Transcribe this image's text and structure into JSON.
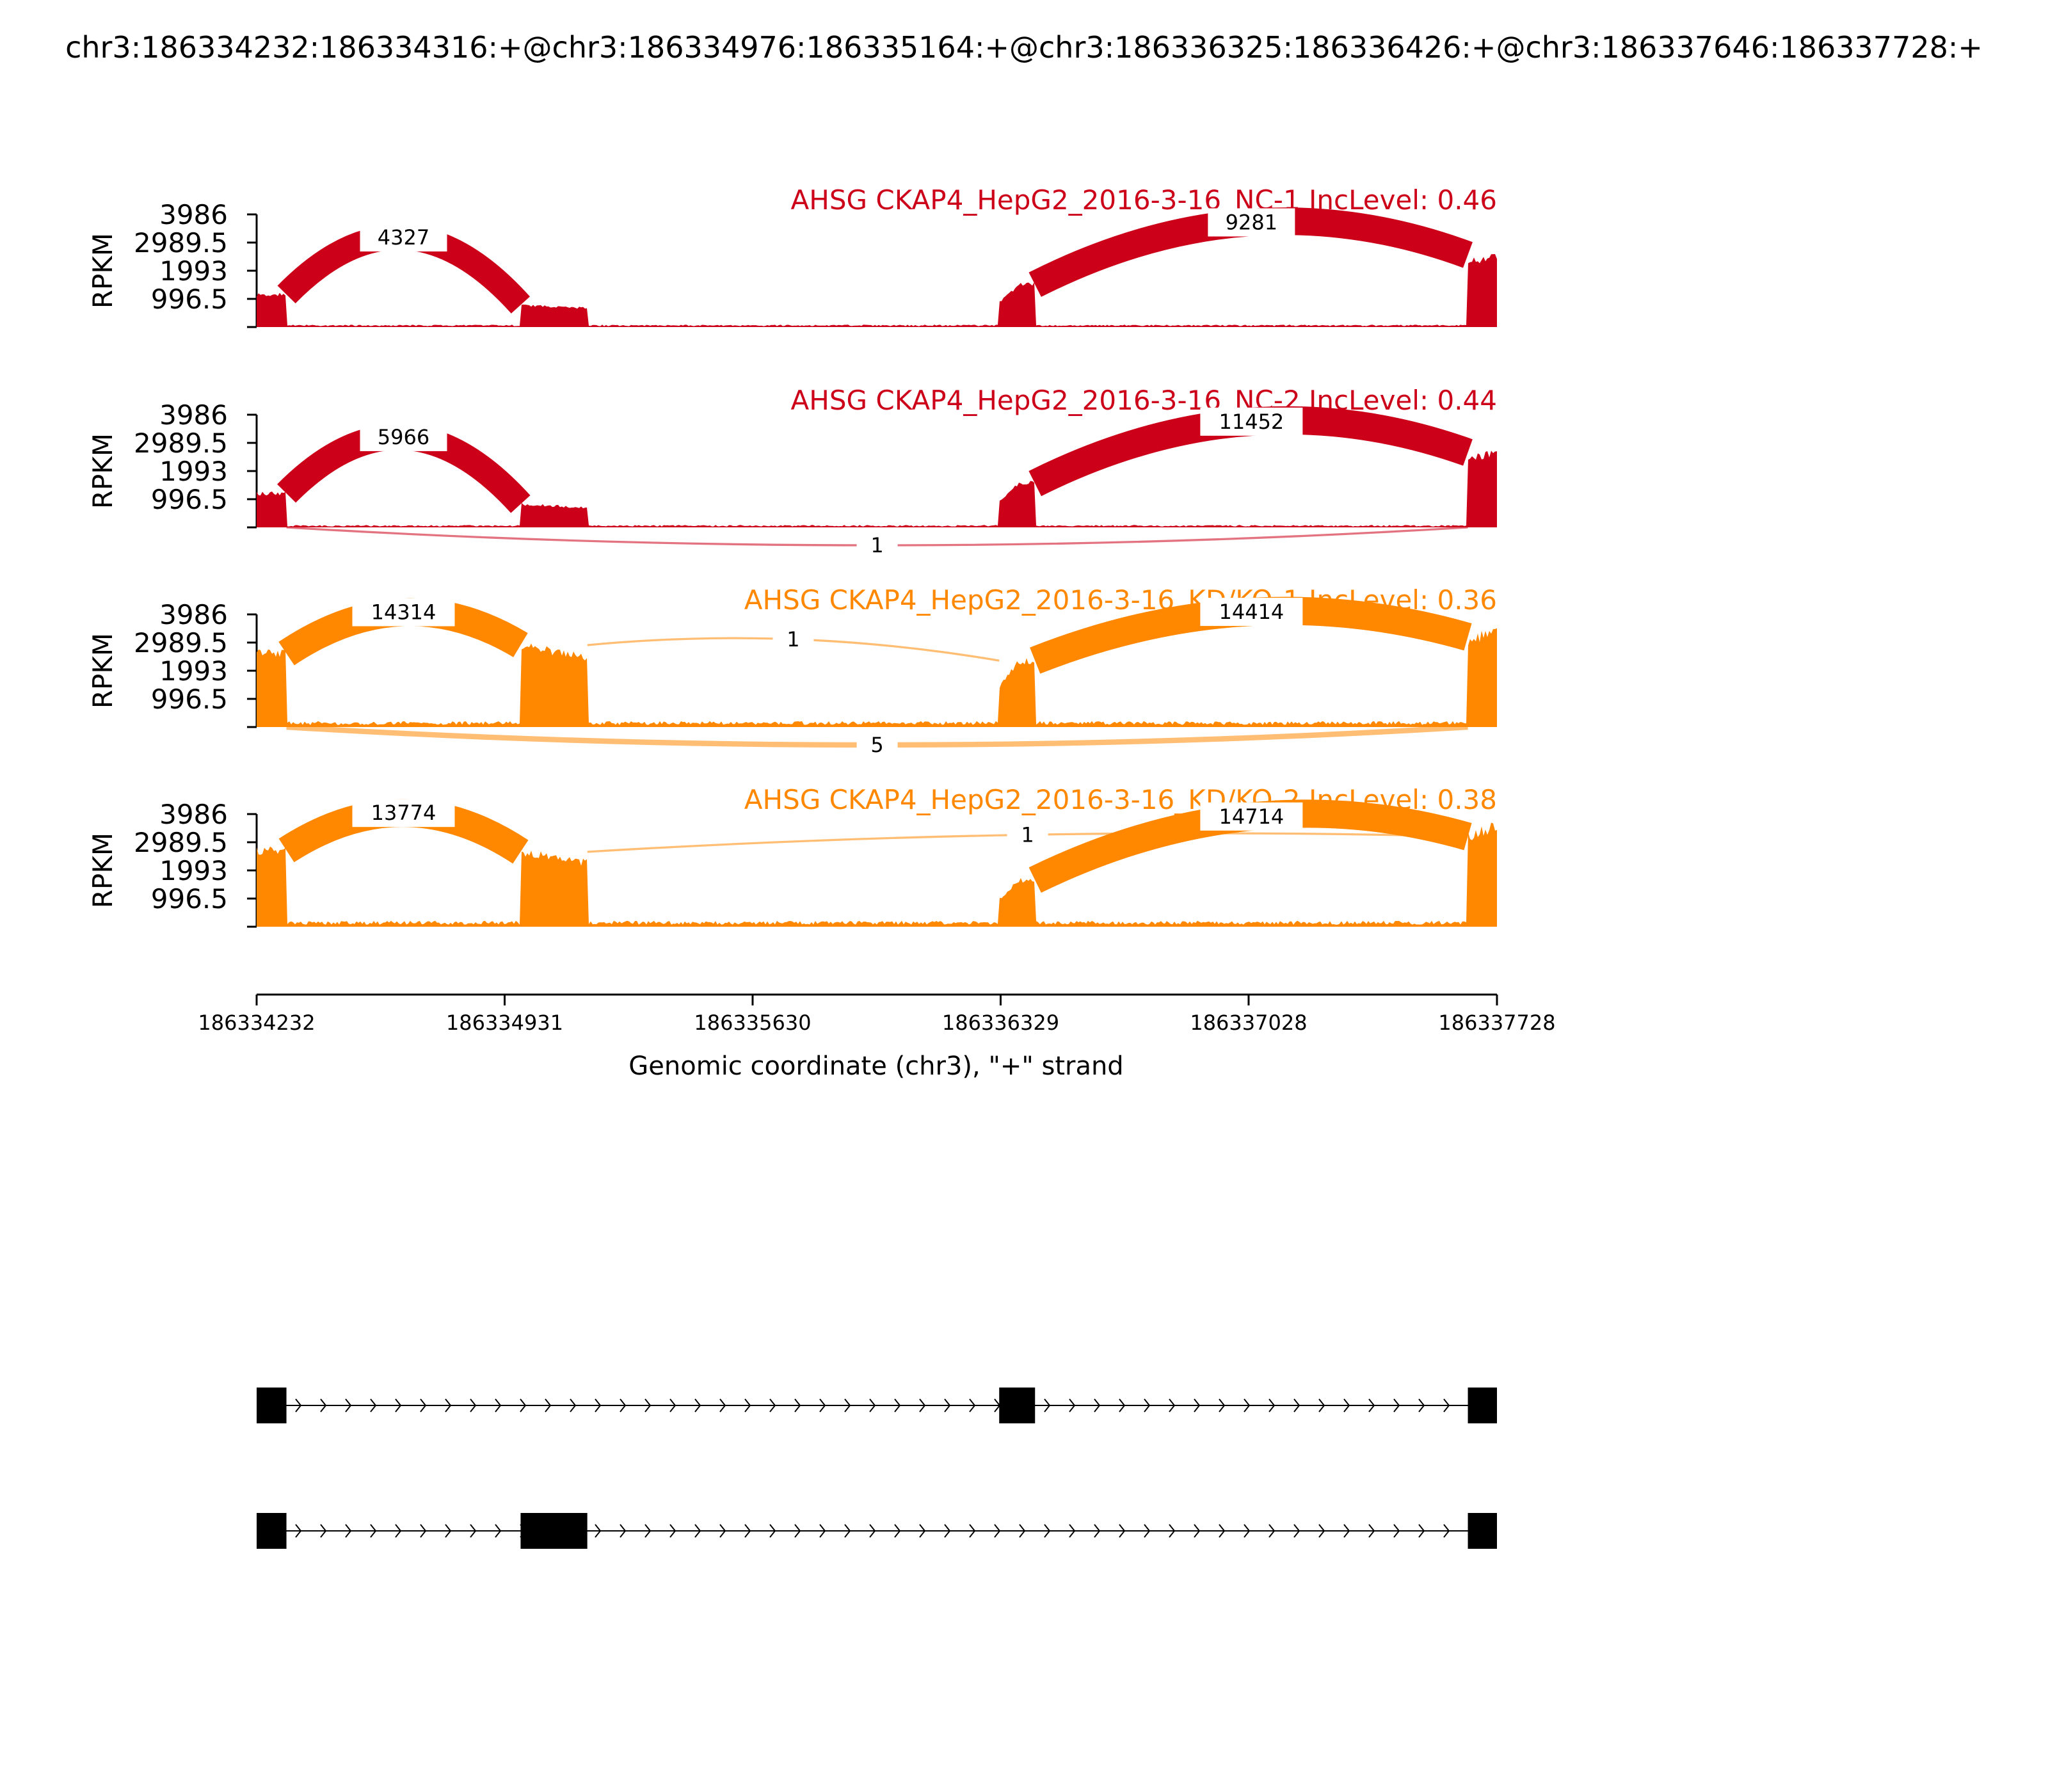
{
  "figure_title": "chr3:186334232:186334316:+@chr3:186334976:186335164:+@chr3:186336325:186336426:+@chr3:186337646:186337728:+",
  "chart_data": {
    "type": "sashimi",
    "xlabel": "Genomic coordinate (chr3), \"+\" strand",
    "ylabel": "RPKM",
    "xlim": [
      186334232,
      186337728
    ],
    "xticks": [
      "186334232",
      "186334931",
      "186335630",
      "186336329",
      "186337028",
      "186337728"
    ],
    "ylim": [
      0,
      3986
    ],
    "yticks": [
      "996.5",
      "1993",
      "2989.5",
      "3986"
    ],
    "colors": {
      "NC": "#cc0018",
      "KD": "#ff8800"
    },
    "exons": [
      {
        "start": 186334232,
        "end": 186334316
      },
      {
        "start": 186334976,
        "end": 186335164
      },
      {
        "start": 186336325,
        "end": 186336426
      },
      {
        "start": 186337646,
        "end": 186337728
      }
    ],
    "tracks": [
      {
        "label": "AHSG CKAP4_HepG2_2016-3-16_NC-1 IncLevel: 0.46",
        "color": "#cc0018",
        "coverage": {
          "exon1": 1150,
          "exon2": 780,
          "exon3": 1500,
          "exon4": 2550,
          "intron": 60
        },
        "junctions": [
          {
            "from": 186334316,
            "to": 186334976,
            "reads": "4327",
            "above": true
          },
          {
            "from": 186336426,
            "to": 186337646,
            "reads": "9281",
            "above": true
          }
        ]
      },
      {
        "label": "AHSG CKAP4_HepG2_2016-3-16_NC-2 IncLevel: 0.44",
        "color": "#cc0018",
        "coverage": {
          "exon1": 1200,
          "exon2": 820,
          "exon3": 1550,
          "exon4": 2650,
          "intron": 60
        },
        "junctions": [
          {
            "from": 186334316,
            "to": 186334976,
            "reads": "5966",
            "above": true
          },
          {
            "from": 186336426,
            "to": 186337646,
            "reads": "11452",
            "above": true
          },
          {
            "from": 186334316,
            "to": 186337646,
            "reads": "1",
            "above": false
          }
        ]
      },
      {
        "label": "AHSG CKAP4_HepG2_2016-3-16_KD/KO-1 IncLevel: 0.36",
        "color": "#ff8800",
        "coverage": {
          "exon1": 2600,
          "exon2": 2900,
          "exon3": 2350,
          "exon4": 3400,
          "intron": 150
        },
        "junctions": [
          {
            "from": 186334316,
            "to": 186334976,
            "reads": "14314",
            "above": true
          },
          {
            "from": 186336426,
            "to": 186337646,
            "reads": "14414",
            "above": true
          },
          {
            "from": 186335164,
            "to": 186336325,
            "reads": "1",
            "above": true
          },
          {
            "from": 186334316,
            "to": 186337646,
            "reads": "5",
            "above": false
          }
        ]
      },
      {
        "label": "AHSG CKAP4_HepG2_2016-3-16_KD/KO-2 IncLevel: 0.38",
        "color": "#ff8800",
        "coverage": {
          "exon1": 2700,
          "exon2": 2650,
          "exon3": 1650,
          "exon4": 3550,
          "intron": 150
        },
        "junctions": [
          {
            "from": 186334316,
            "to": 186334976,
            "reads": "13774",
            "above": true
          },
          {
            "from": 186336426,
            "to": 186337646,
            "reads": "14714",
            "above": true
          },
          {
            "from": 186335164,
            "to": 186337646,
            "reads": "1",
            "above": true
          }
        ]
      }
    ],
    "isoforms": [
      {
        "exons": [
          [
            186334232,
            186334316
          ],
          [
            186336325,
            186336426
          ],
          [
            186337646,
            186337728
          ]
        ]
      },
      {
        "exons": [
          [
            186334232,
            186334316
          ],
          [
            186334976,
            186335164
          ],
          [
            186337646,
            186337728
          ]
        ]
      }
    ]
  }
}
